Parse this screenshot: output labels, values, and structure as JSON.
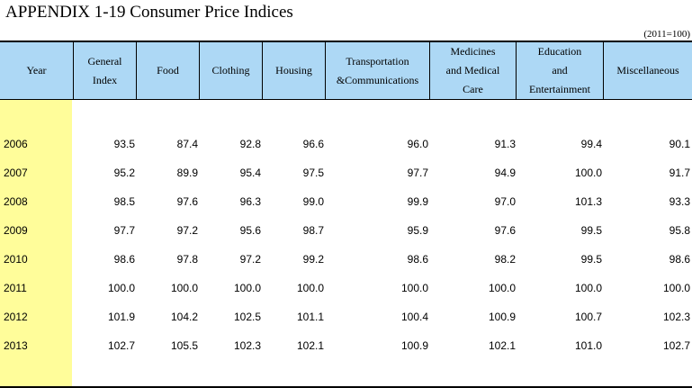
{
  "title": "APPENDIX 1-19  Consumer Price Indices",
  "base_note": "(2011=100)",
  "columns": {
    "year": "Year",
    "general": [
      "General",
      "Index"
    ],
    "food": "Food",
    "clothing": "Clothing",
    "housing": "Housing",
    "transport": [
      "Transportation",
      "&Communications"
    ],
    "medicines": [
      "Medicines",
      "and Medical",
      "Care"
    ],
    "education": [
      "Education",
      "and",
      "Entertainment"
    ],
    "misc": "Miscellaneous"
  },
  "rows": [
    {
      "year": "2006",
      "values": [
        "93.5",
        "87.4",
        "92.8",
        "96.6",
        "96.0",
        "91.3",
        "99.4",
        "90.1"
      ]
    },
    {
      "year": "2007",
      "values": [
        "95.2",
        "89.9",
        "95.4",
        "97.5",
        "97.7",
        "94.9",
        "100.0",
        "91.7"
      ]
    },
    {
      "year": "2008",
      "values": [
        "98.5",
        "97.6",
        "96.3",
        "99.0",
        "99.9",
        "97.0",
        "101.3",
        "93.3"
      ]
    },
    {
      "year": "2009",
      "values": [
        "97.7",
        "97.2",
        "95.6",
        "98.7",
        "95.9",
        "97.6",
        "99.5",
        "95.8"
      ]
    },
    {
      "year": "2010",
      "values": [
        "98.6",
        "97.8",
        "97.2",
        "99.2",
        "98.6",
        "98.2",
        "99.5",
        "98.6"
      ]
    },
    {
      "year": "2011",
      "values": [
        "100.0",
        "100.0",
        "100.0",
        "100.0",
        "100.0",
        "100.0",
        "100.0",
        "100.0"
      ]
    },
    {
      "year": "2012",
      "values": [
        "101.9",
        "104.2",
        "102.5",
        "101.1",
        "100.4",
        "100.9",
        "100.7",
        "102.3"
      ]
    },
    {
      "year": "2013",
      "values": [
        "102.7",
        "105.5",
        "102.3",
        "102.1",
        "100.9",
        "102.1",
        "101.0",
        "102.7"
      ]
    }
  ]
}
